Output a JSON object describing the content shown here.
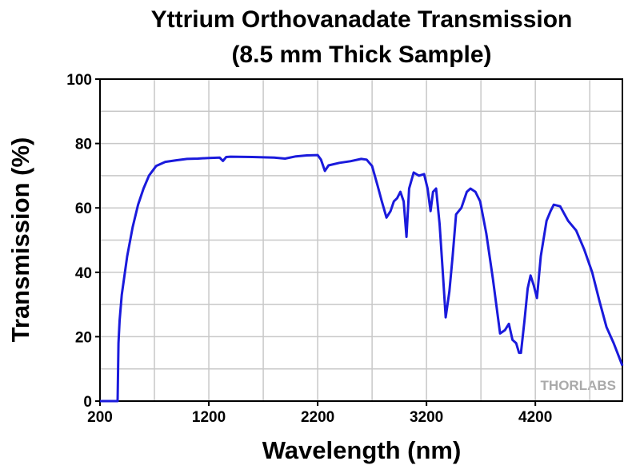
{
  "chart_data": {
    "type": "line",
    "title": [
      "Yttrium Orthovanadate Transmission",
      "(8.5 mm Thick Sample)"
    ],
    "x_label": "Wavelength (nm)",
    "y_label": "Transmission (%)",
    "watermark": "THORLABS",
    "xlim": [
      200,
      5000
    ],
    "ylim": [
      0,
      100
    ],
    "xticks": [
      200,
      1200,
      2200,
      3200,
      4200
    ],
    "yticks": [
      0,
      20,
      40,
      60,
      80,
      100
    ],
    "x_minor_ticks": [
      700,
      1700,
      2700,
      3700,
      4700
    ],
    "y_minor_ticks": [
      10,
      30,
      50,
      70,
      90
    ],
    "grid": true,
    "series": [
      {
        "name": "Transmission",
        "color": "#1a1adc",
        "x": [
          200,
          300,
          350,
          362,
          370,
          380,
          400,
          450,
          500,
          550,
          600,
          650,
          715,
          800,
          900,
          1000,
          1100,
          1200,
          1300,
          1330,
          1360,
          1400,
          1600,
          1800,
          1900,
          2000,
          2100,
          2200,
          2230,
          2266,
          2300,
          2400,
          2500,
          2600,
          2650,
          2700,
          2750,
          2790,
          2832,
          2870,
          2900,
          2930,
          2960,
          2990,
          3016,
          3040,
          3082,
          3130,
          3178,
          3210,
          3237,
          3260,
          3288,
          3320,
          3350,
          3376,
          3410,
          3440,
          3472,
          3520,
          3570,
          3604,
          3650,
          3693,
          3750,
          3810,
          3876,
          3920,
          3957,
          3990,
          4024,
          4050,
          4068,
          4100,
          4130,
          4156,
          4185,
          4215,
          4250,
          4303,
          4340,
          4369,
          4428,
          4501,
          4575,
          4650,
          4722,
          4790,
          4854,
          4920,
          5000
        ],
        "values": [
          0,
          0,
          0,
          0,
          18,
          25,
          33,
          45,
          54,
          61,
          66,
          70,
          73,
          74.3,
          74.8,
          75.2,
          75.3,
          75.5,
          75.6,
          74.6,
          75.8,
          75.9,
          75.8,
          75.6,
          75.3,
          76,
          76.3,
          76.4,
          75,
          71.5,
          73.2,
          74,
          74.5,
          75.2,
          75,
          73,
          67,
          62,
          57,
          59,
          62,
          63,
          65,
          62,
          51,
          66,
          71,
          70,
          70.5,
          66,
          59,
          65,
          66,
          55,
          40,
          26,
          34,
          45,
          58,
          60,
          65,
          66,
          65,
          62,
          52,
          38,
          21,
          22,
          24,
          19,
          18,
          15,
          15,
          25,
          35,
          39,
          36,
          32,
          45,
          56,
          59,
          61,
          60.5,
          56,
          53,
          47,
          40,
          31,
          23,
          18,
          11
        ]
      }
    ]
  }
}
